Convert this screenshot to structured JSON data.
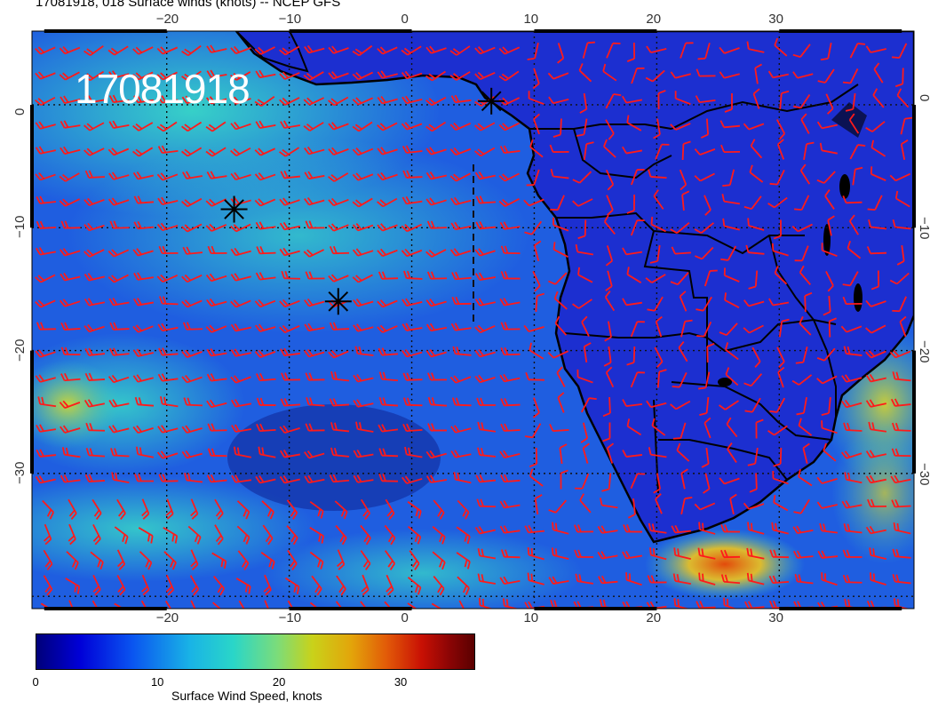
{
  "header": {
    "title": "17081918, 018 Surface winds (knots) -- NCEP GFS"
  },
  "map": {
    "stamp": "17081918",
    "lon_ticks": [
      "−20",
      "−10",
      "0",
      "10",
      "20",
      "30"
    ],
    "lat_ticks": [
      "0",
      "−10",
      "−20",
      "−30"
    ],
    "lon_range": [
      -31,
      41
    ],
    "lat_range": [
      -41,
      6
    ],
    "markers": [
      {
        "name": "marker-1",
        "lon": 6.5,
        "lat": 0.3
      },
      {
        "name": "marker-2",
        "lon": -14.5,
        "lat": -8.5
      },
      {
        "name": "marker-3",
        "lon": -6,
        "lat": -16
      }
    ],
    "barb_color": "#ff1a1a",
    "land_color": "#1c2fd0",
    "ocean_color": "#1f5ee0"
  },
  "colorbar": {
    "label": "Surface Wind Speed, knots",
    "ticks": [
      "0",
      "10",
      "20",
      "30"
    ],
    "range": [
      0,
      36
    ]
  }
}
